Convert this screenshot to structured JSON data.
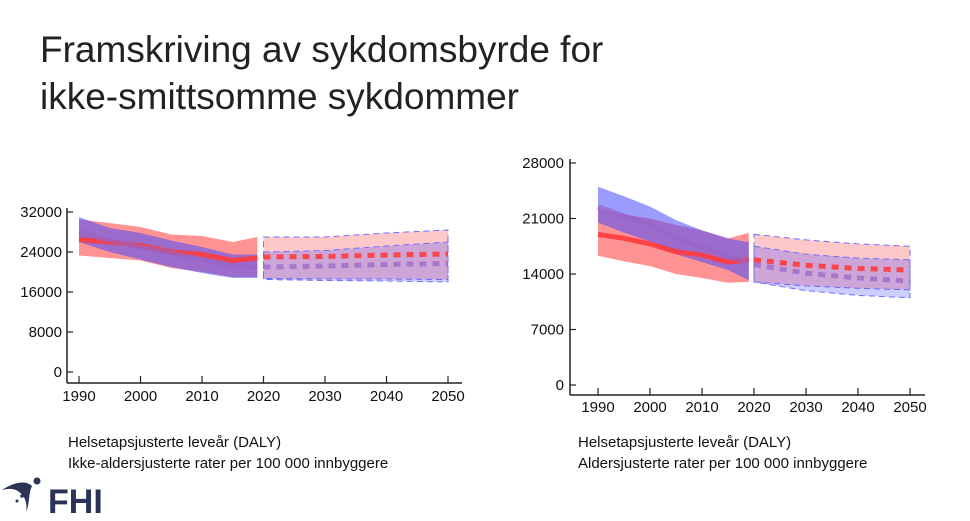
{
  "slide": {
    "title_line1": "Framskriving av sykdomsbyrde for",
    "title_line2": "ikke-smittsomme sykdommer",
    "logo_text": "FHI"
  },
  "colors": {
    "red": "#ff3b3b",
    "blue": "#4a4aff",
    "purple": "#9a63c8"
  },
  "chart_data": [
    {
      "type": "line",
      "title": "",
      "caption_line1": "Helsetapsjusterte leveår (DALY)",
      "caption_line2": "Ikke-aldersjusterte rater per 100 000 innbyggere",
      "xlabel": "",
      "ylabel": "",
      "xlim": [
        1990,
        2050
      ],
      "ylim": [
        0,
        32000
      ],
      "xticks": [
        1990,
        2000,
        2010,
        2020,
        2030,
        2040,
        2050
      ],
      "yticks": [
        0,
        8000,
        16000,
        24000,
        32000
      ],
      "grid": false,
      "series": [
        {
          "name": "red-history",
          "color": "red",
          "style": "solid",
          "x": [
            1990,
            1995,
            2000,
            2005,
            2010,
            2015,
            2019
          ],
          "y": [
            26500,
            26000,
            25300,
            24000,
            23500,
            22300,
            22800
          ],
          "lower": [
            23300,
            22800,
            22300,
            20800,
            20000,
            19000,
            19000
          ],
          "upper": [
            30500,
            29800,
            29000,
            27500,
            27200,
            26000,
            27000
          ]
        },
        {
          "name": "blue-history",
          "color": "blue",
          "style": "solid",
          "x": [
            1990,
            1995,
            2000,
            2005,
            2010,
            2015,
            2019
          ],
          "y": [
            28000,
            26300,
            25000,
            23800,
            22500,
            21200,
            21000
          ],
          "lower": [
            26000,
            24000,
            22500,
            21000,
            19800,
            18800,
            18800
          ],
          "upper": [
            31000,
            28800,
            27800,
            26300,
            25000,
            23500,
            23500
          ]
        },
        {
          "name": "red-forecast",
          "color": "red",
          "style": "dashed",
          "x": [
            2020,
            2030,
            2040,
            2050
          ],
          "y": [
            23000,
            23100,
            23400,
            23600
          ],
          "lower": [
            18700,
            18600,
            18600,
            18500
          ],
          "upper": [
            27000,
            27000,
            27800,
            28400
          ]
        },
        {
          "name": "blue-forecast",
          "color": "blue",
          "style": "dashed",
          "x": [
            2020,
            2030,
            2040,
            2050
          ],
          "y": [
            21000,
            21200,
            21500,
            21700
          ],
          "lower": [
            18500,
            18300,
            18200,
            18000
          ],
          "upper": [
            24000,
            24300,
            25200,
            26000
          ]
        }
      ]
    },
    {
      "type": "line",
      "title": "",
      "caption_line1": "Helsetapsjusterte leveår (DALY)",
      "caption_line2": "Aldersjusterte rater per 100 000 innbyggere",
      "xlabel": "",
      "ylabel": "",
      "xlim": [
        1990,
        2050
      ],
      "ylim": [
        0,
        28000
      ],
      "xticks": [
        1990,
        2000,
        2010,
        2020,
        2030,
        2040,
        2050
      ],
      "yticks": [
        0,
        7000,
        14000,
        21000,
        28000
      ],
      "grid": false,
      "series": [
        {
          "name": "red-history",
          "color": "red",
          "style": "solid",
          "x": [
            1990,
            1995,
            2000,
            2005,
            2010,
            2015,
            2019
          ],
          "y": [
            19000,
            18500,
            17800,
            16800,
            16400,
            15500,
            15800
          ],
          "lower": [
            16300,
            15600,
            15000,
            14000,
            13500,
            12900,
            13000
          ],
          "upper": [
            22200,
            21500,
            21000,
            20200,
            19500,
            18500,
            19200
          ]
        },
        {
          "name": "blue-history",
          "color": "blue",
          "style": "solid",
          "x": [
            1990,
            1995,
            2000,
            2005,
            2010,
            2015,
            2019
          ],
          "y": [
            22500,
            21300,
            20300,
            18500,
            17400,
            16200,
            15500
          ],
          "lower": [
            20500,
            19200,
            18100,
            16500,
            15500,
            14500,
            13200
          ],
          "upper": [
            25000,
            23800,
            22500,
            20800,
            19500,
            18500,
            18000
          ]
        },
        {
          "name": "red-forecast",
          "color": "red",
          "style": "dashed",
          "x": [
            2020,
            2030,
            2040,
            2050
          ],
          "y": [
            15800,
            15100,
            14700,
            14500
          ],
          "lower": [
            13000,
            12500,
            12200,
            12000
          ],
          "upper": [
            19000,
            18300,
            17800,
            17500
          ]
        },
        {
          "name": "blue-forecast",
          "color": "blue",
          "style": "dashed",
          "x": [
            2020,
            2030,
            2040,
            2050
          ],
          "y": [
            15200,
            14100,
            13500,
            13100
          ],
          "lower": [
            13000,
            11900,
            11300,
            11000
          ],
          "upper": [
            17500,
            16500,
            16000,
            15800
          ]
        }
      ]
    }
  ]
}
